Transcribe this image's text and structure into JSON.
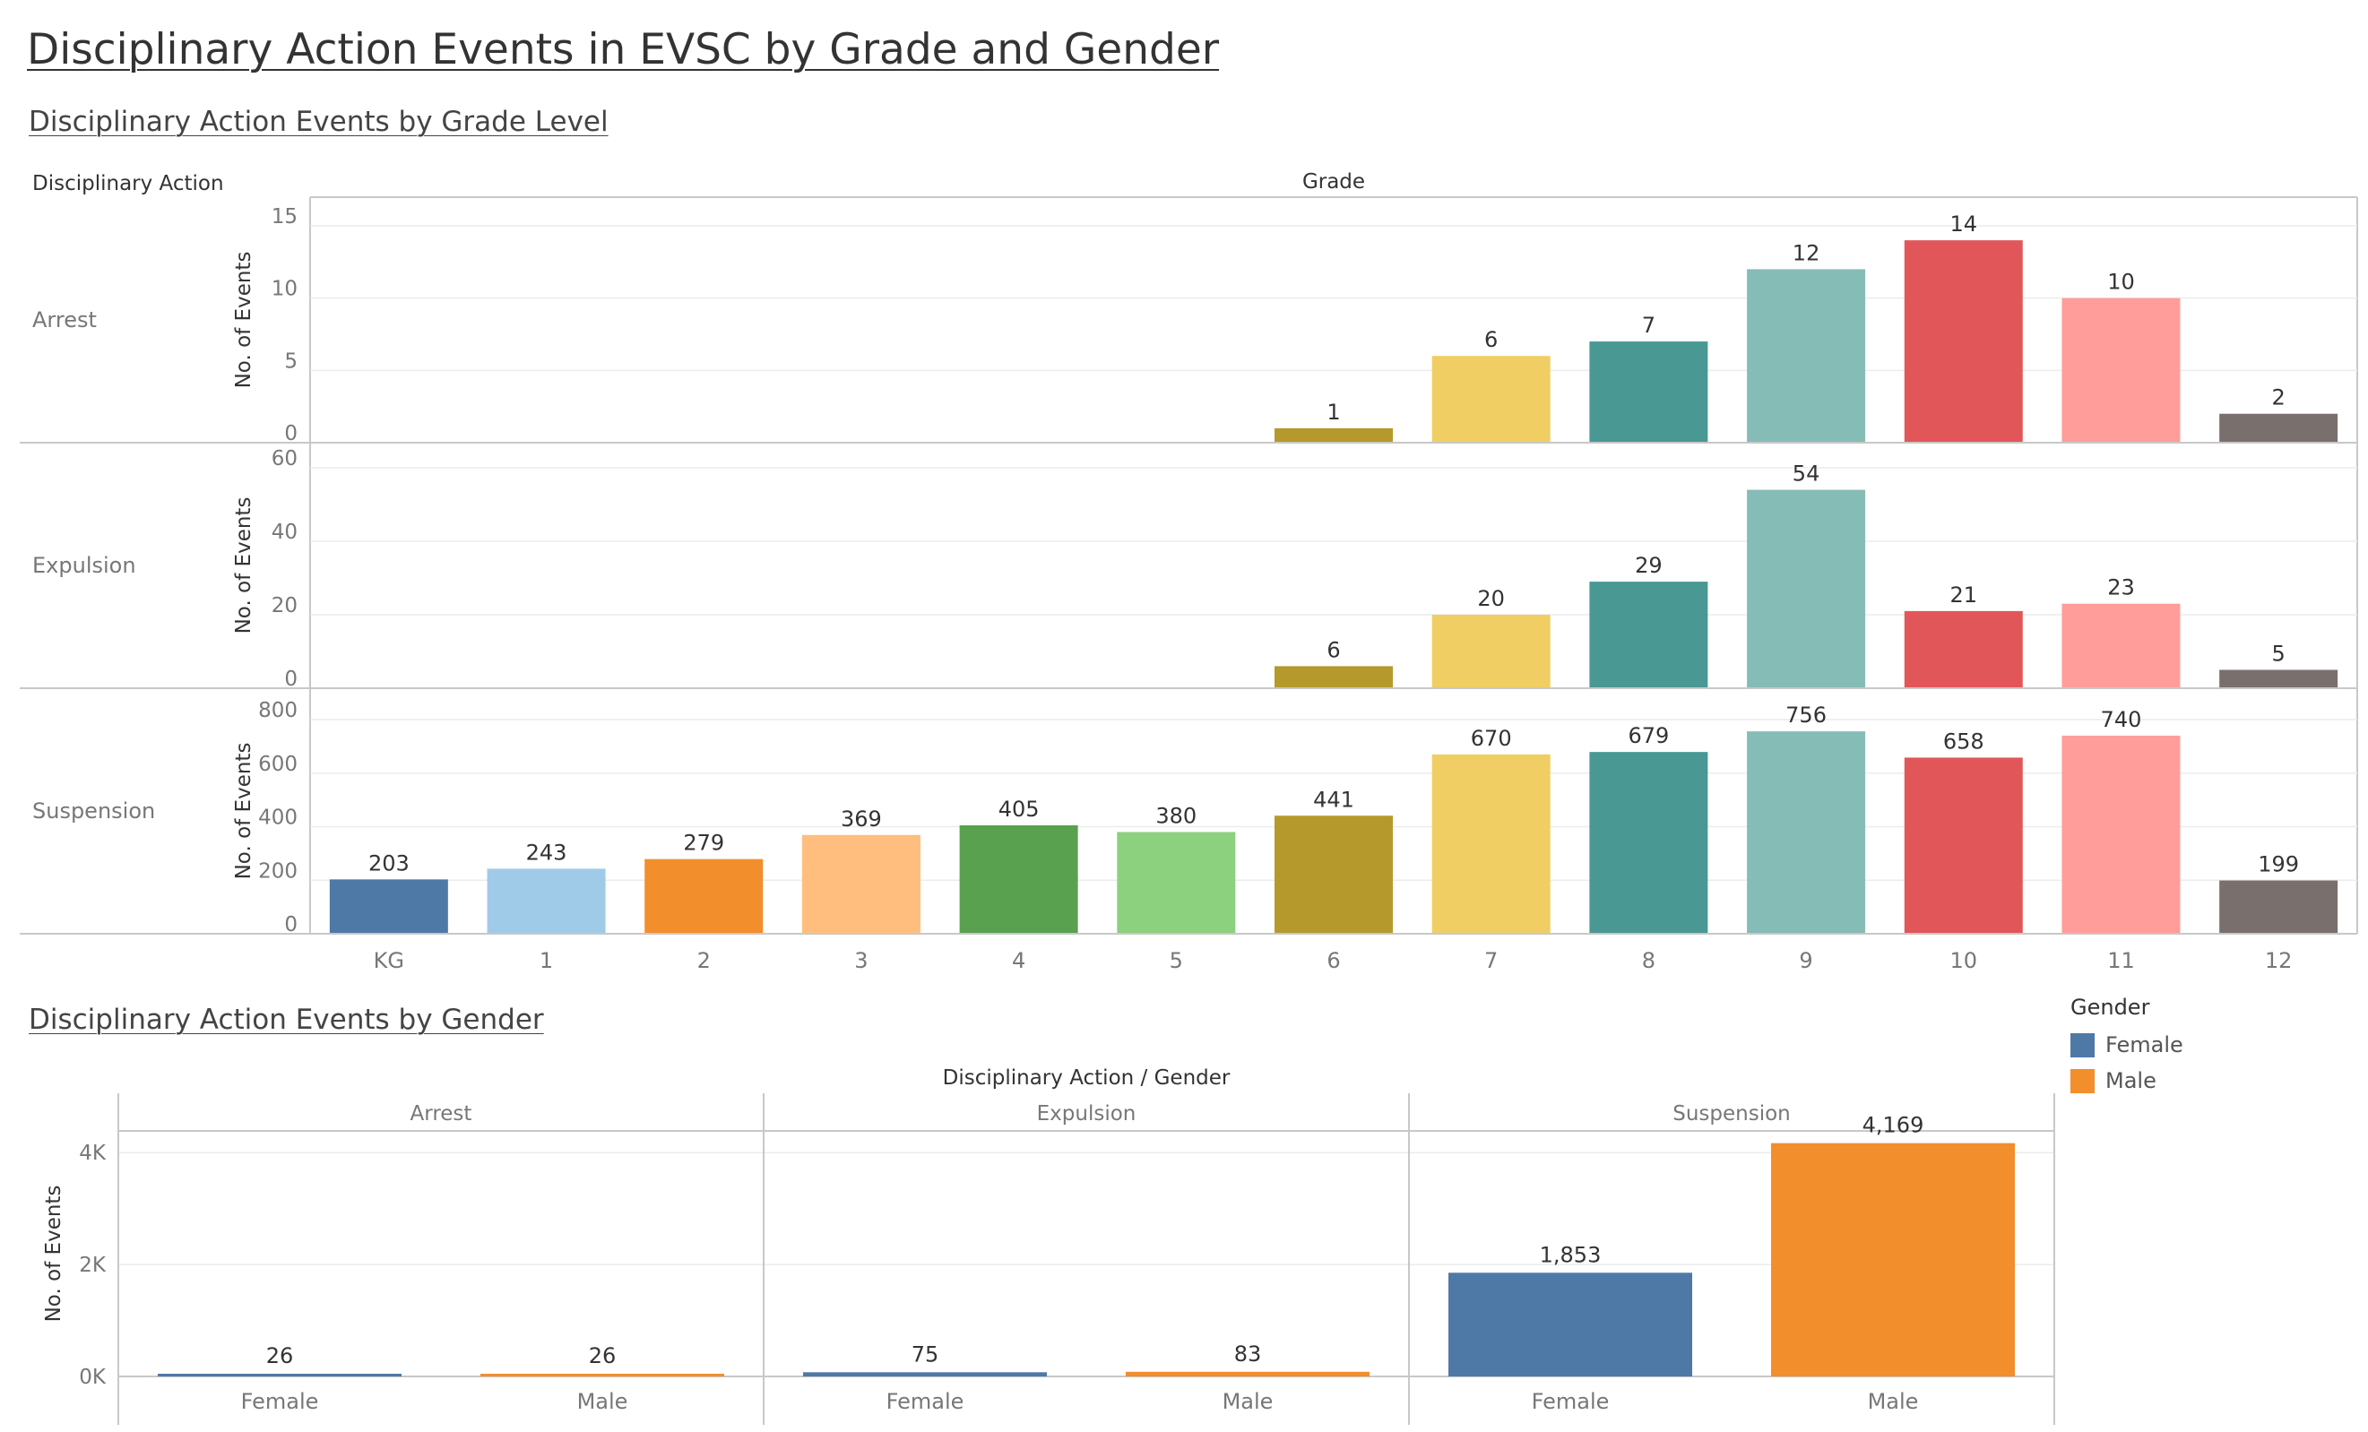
{
  "title": "Disciplinary Action Events in EVSC by Grade and Gender",
  "grade_section_title": "Disciplinary Action Events by Grade Level",
  "gender_section_title": "Disciplinary Action Events by Gender",
  "colors": {
    "grades": [
      "#4e79a7",
      "#a0cbe8",
      "#f28e2b",
      "#ffbe7d",
      "#59a14f",
      "#8cd17d",
      "#b6992d",
      "#f1ce63",
      "#499894",
      "#86bcb6",
      "#e15759",
      "#ff9d9a",
      "#79706e"
    ],
    "gender": {
      "Female": "#4e79a7",
      "Male": "#f28e2b"
    },
    "gridline": "#ececec",
    "border": "#c8c8c8"
  },
  "legend": {
    "title": "Gender",
    "items": [
      {
        "label": "Female",
        "color": "#4e79a7"
      },
      {
        "label": "Male",
        "color": "#f28e2b"
      }
    ]
  },
  "chart_data": [
    {
      "type": "bar",
      "title": "Disciplinary Action Events by Grade Level",
      "row_header": "Disciplinary Action",
      "column_header": "Grade",
      "ylabel": "No. of Events",
      "categories": [
        "KG",
        "1",
        "2",
        "3",
        "4",
        "5",
        "6",
        "7",
        "8",
        "9",
        "10",
        "11",
        "12"
      ],
      "panels": [
        {
          "name": "Arrest",
          "ylim": [
            0,
            15
          ],
          "ticks": [
            0,
            5,
            10,
            15
          ],
          "tick_labels": [
            "0",
            "5",
            "10",
            "15"
          ],
          "values": [
            null,
            null,
            null,
            null,
            null,
            null,
            1,
            6,
            7,
            12,
            14,
            10,
            2
          ],
          "labels": [
            "",
            "",
            "",
            "",
            "",
            "",
            "1",
            "6",
            "7",
            "12",
            "14",
            "10",
            "2"
          ]
        },
        {
          "name": "Expulsion",
          "ylim": [
            0,
            60
          ],
          "ticks": [
            0,
            20,
            40,
            60
          ],
          "tick_labels": [
            "0",
            "20",
            "40",
            "60"
          ],
          "values": [
            null,
            null,
            null,
            null,
            null,
            null,
            6,
            20,
            29,
            54,
            21,
            23,
            5
          ],
          "labels": [
            "",
            "",
            "",
            "",
            "",
            "",
            "6",
            "20",
            "29",
            "54",
            "21",
            "23",
            "5"
          ]
        },
        {
          "name": "Suspension",
          "ylim": [
            0,
            800
          ],
          "ticks": [
            0,
            200,
            400,
            600,
            800
          ],
          "tick_labels": [
            "0",
            "200",
            "400",
            "600",
            "800"
          ],
          "values": [
            203,
            243,
            279,
            369,
            405,
            380,
            441,
            670,
            679,
            756,
            658,
            740,
            199
          ],
          "labels": [
            "203",
            "243",
            "279",
            "369",
            "405",
            "380",
            "441",
            "670",
            "679",
            "756",
            "658",
            "740",
            "199"
          ]
        }
      ]
    },
    {
      "type": "bar",
      "title": "Disciplinary Action Events by Gender",
      "column_header": "Disciplinary Action  /  Gender",
      "ylabel": "No. of Events",
      "ylim": [
        0,
        4500
      ],
      "ticks": [
        0,
        2000,
        4000
      ],
      "tick_labels": [
        "0K",
        "2K",
        "4K"
      ],
      "categories": [
        "Female",
        "Male"
      ],
      "panels": [
        {
          "name": "Arrest",
          "values": [
            26,
            26
          ],
          "labels": [
            "26",
            "26"
          ]
        },
        {
          "name": "Expulsion",
          "values": [
            75,
            83
          ],
          "labels": [
            "75",
            "83"
          ]
        },
        {
          "name": "Suspension",
          "values": [
            1853,
            4169
          ],
          "labels": [
            "1,853",
            "4,169"
          ]
        }
      ]
    }
  ]
}
